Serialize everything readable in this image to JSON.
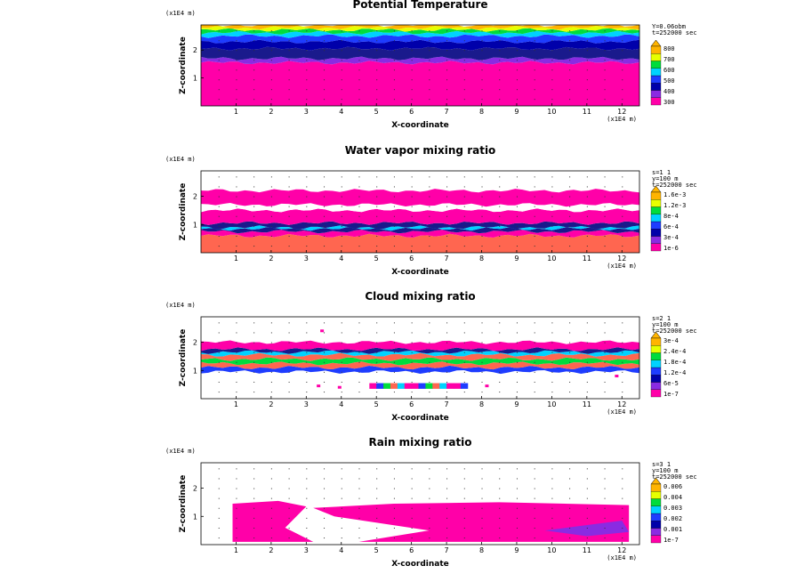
{
  "colors": {
    "magenta": "#ff00a8",
    "salmon": "#ff6650",
    "navy": "#1a1a8c",
    "blue": "#1e3cff",
    "deepblue": "#0000aa",
    "cyan": "#00d2ff",
    "green": "#00dc3c",
    "yellow": "#e6ff00",
    "orange": "#ffb400",
    "purple": "#8a2be2"
  },
  "chart_data": [
    {
      "type": "heatmap",
      "title": "Potential Temperature",
      "xlabel": "X-coordinate",
      "ylabel": "Z-coordinate",
      "xunit": "(x1E4 m)",
      "zunit": "(x1E4 m)",
      "xticks": [
        "1",
        "2",
        "3",
        "4",
        "5",
        "6",
        "7",
        "8",
        "9",
        "10",
        "11",
        "12"
      ],
      "zticks": [
        "1",
        "2"
      ],
      "xlim": [
        0,
        12.5
      ],
      "zlim": [
        0,
        2.9
      ],
      "info": [
        "Y=0.06obm",
        "t=252000 sec"
      ],
      "colorbar": {
        "labels": [
          "800",
          "700",
          "600",
          "500",
          "400",
          "300"
        ],
        "colors": [
          "#ff00a8",
          "#8a2be2",
          "#0000aa",
          "#1e3cff",
          "#00d2ff",
          "#00dc3c",
          "#e6ff00",
          "#ffb400"
        ]
      },
      "bands": [
        {
          "z0": 0,
          "z1": 1.55,
          "color": "magenta"
        },
        {
          "z0": 1.55,
          "z1": 1.7,
          "color": "purple"
        },
        {
          "z0": 1.7,
          "z1": 2.05,
          "color": "navy"
        },
        {
          "z0": 2.05,
          "z1": 2.3,
          "color": "deepblue"
        },
        {
          "z0": 2.3,
          "z1": 2.5,
          "color": "blue"
        },
        {
          "z0": 2.5,
          "z1": 2.62,
          "color": "cyan"
        },
        {
          "z0": 2.62,
          "z1": 2.72,
          "color": "green"
        },
        {
          "z0": 2.72,
          "z1": 2.8,
          "color": "yellow"
        },
        {
          "z0": 2.8,
          "z1": 2.9,
          "color": "orange"
        }
      ]
    },
    {
      "type": "heatmap",
      "title": "Water vapor mixing ratio",
      "xlabel": "X-coordinate",
      "ylabel": "Z-coordinate",
      "xunit": "(x1E4 m)",
      "zunit": "(x1E4 m)",
      "xticks": [
        "1",
        "2",
        "3",
        "4",
        "5",
        "6",
        "7",
        "8",
        "9",
        "10",
        "11",
        "12"
      ],
      "zticks": [
        "1",
        "2"
      ],
      "xlim": [
        0,
        12.5
      ],
      "zlim": [
        0,
        2.9
      ],
      "info": [
        "s=1 1",
        "y=100 m",
        "t=252000 sec"
      ],
      "colorbar": {
        "labels": [
          "1.6e-3",
          "1.2e-3",
          "8e-4",
          "6e-4",
          "3e-4",
          "1e-6"
        ],
        "colors": [
          "#ff00a8",
          "#8a2be2",
          "#0000aa",
          "#1e3cff",
          "#00d2ff",
          "#00dc3c",
          "#e6ff00",
          "#ffb400"
        ]
      },
      "bands": [
        {
          "z0": 0,
          "z1": 0.6,
          "color": "salmon"
        },
        {
          "z0": 0.6,
          "z1": 0.75,
          "color": "magenta"
        },
        {
          "z0": 0.75,
          "z1": 0.85,
          "color": "navy"
        },
        {
          "z0": 0.85,
          "z1": 0.9,
          "color": "cyan"
        },
        {
          "z0": 0.9,
          "z1": 1.05,
          "color": "navy"
        },
        {
          "z0": 1.05,
          "z1": 1.5,
          "color": "magenta"
        },
        {
          "z0": 1.5,
          "z1": 1.7,
          "color": "white"
        },
        {
          "z0": 1.7,
          "z1": 2.2,
          "color": "magenta"
        }
      ]
    },
    {
      "type": "heatmap",
      "title": "Cloud mixing ratio",
      "xlabel": "X-coordinate",
      "ylabel": "Z-coordinate",
      "xunit": "(x1E4 m)",
      "zunit": "(x1E4 m)",
      "xticks": [
        "1",
        "2",
        "3",
        "4",
        "5",
        "6",
        "7",
        "8",
        "9",
        "10",
        "11",
        "12"
      ],
      "zticks": [
        "1",
        "2"
      ],
      "xlim": [
        0,
        12.5
      ],
      "zlim": [
        0,
        2.9
      ],
      "info": [
        "s=2 1",
        "y=100 m",
        "t=252000 sec"
      ],
      "colorbar": {
        "labels": [
          "3e-4",
          "2.4e-4",
          "1.8e-4",
          "1.2e-4",
          "6e-5",
          "1e-7"
        ],
        "colors": [
          "#ff00a8",
          "#8a2be2",
          "#0000aa",
          "#1e3cff",
          "#00d2ff",
          "#00dc3c",
          "#e6ff00",
          "#ffb400"
        ]
      },
      "bands": [
        {
          "z0": 0.95,
          "z1": 1.1,
          "color": "blue"
        },
        {
          "z0": 1.1,
          "z1": 1.25,
          "color": "salmon"
        },
        {
          "z0": 1.25,
          "z1": 1.4,
          "color": "green"
        },
        {
          "z0": 1.4,
          "z1": 1.55,
          "color": "salmon"
        },
        {
          "z0": 1.55,
          "z1": 1.65,
          "color": "cyan"
        },
        {
          "z0": 1.65,
          "z1": 1.75,
          "color": "navy"
        },
        {
          "z0": 1.75,
          "z1": 2.0,
          "color": "magenta"
        }
      ]
    },
    {
      "type": "heatmap",
      "title": "Rain mixing ratio",
      "xlabel": "X-coordinate",
      "ylabel": "Z-coordinate",
      "xunit": "(x1E4 m)",
      "zunit": "(x1E4 m)",
      "xticks": [
        "1",
        "2",
        "3",
        "4",
        "5",
        "6",
        "7",
        "8",
        "9",
        "10",
        "11",
        "12"
      ],
      "zticks": [
        "1",
        "2"
      ],
      "xlim": [
        0,
        12.5
      ],
      "zlim": [
        0,
        2.9
      ],
      "info": [
        "s=3 1",
        "y=100 m",
        "t=252000 sec"
      ],
      "colorbar": {
        "labels": [
          "0.006",
          "0.004",
          "0.003",
          "0.002",
          "0.001",
          "1e-7"
        ],
        "colors": [
          "#ff00a8",
          "#8a2be2",
          "#0000aa",
          "#1e3cff",
          "#00d2ff",
          "#00dc3c",
          "#e6ff00",
          "#ffb400"
        ]
      },
      "bands": []
    }
  ]
}
